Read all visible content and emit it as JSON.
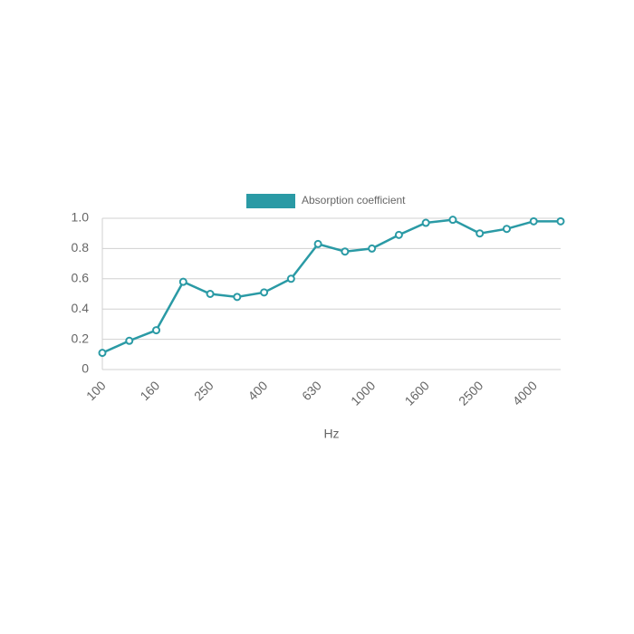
{
  "chart_data": {
    "type": "line",
    "categories": [
      "100",
      null,
      "160",
      null,
      "250",
      null,
      "400",
      null,
      "630",
      null,
      "1000",
      null,
      "1600",
      null,
      "2500",
      null,
      "4000",
      null
    ],
    "x_label": "Hz",
    "series": [
      {
        "name": "Absorption coefficient",
        "color": "#2a9aa5",
        "values": [
          0.11,
          0.19,
          0.26,
          0.58,
          0.5,
          0.48,
          0.51,
          0.6,
          0.83,
          0.78,
          0.8,
          0.89,
          0.97,
          0.99,
          0.9,
          0.93,
          0.98,
          0.98
        ]
      }
    ],
    "ylim": [
      0,
      1
    ],
    "yticks": [
      0,
      0.2,
      0.4,
      0.6,
      0.8,
      {
        "value": 1,
        "label": "1.0"
      }
    ],
    "grid": true,
    "legend": "top"
  }
}
